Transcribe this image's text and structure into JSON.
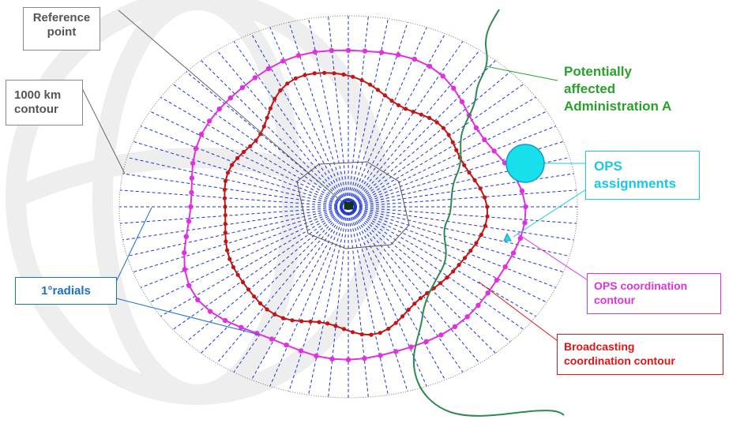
{
  "labels": {
    "reference_point": [
      "Reference",
      "point"
    ],
    "contour_1000km": [
      "1000 km",
      "contour"
    ],
    "radials": "1°radials",
    "administration": [
      "Potentially",
      "affected",
      "Administration A"
    ],
    "ops_assignments": [
      "OPS",
      "assignments"
    ],
    "ops_contour": [
      "OPS coordination",
      "contour"
    ],
    "broadcasting_contour": [
      "Broadcasting",
      "coordination contour"
    ]
  },
  "colors": {
    "radial": "#1a35d8",
    "outer_circle": "#777777",
    "ops_contour": "#e22fe0",
    "broadcasting_contour": "#c41414",
    "border": "#2f8a4e",
    "ops_assignment": "#18e0ea",
    "admin_text": "#2aa12a"
  },
  "icons": {
    "reference_point": "square-marker-icon",
    "ops_assignment_large": "circle-icon",
    "ops_assignment_small": "triangle-icon"
  }
}
